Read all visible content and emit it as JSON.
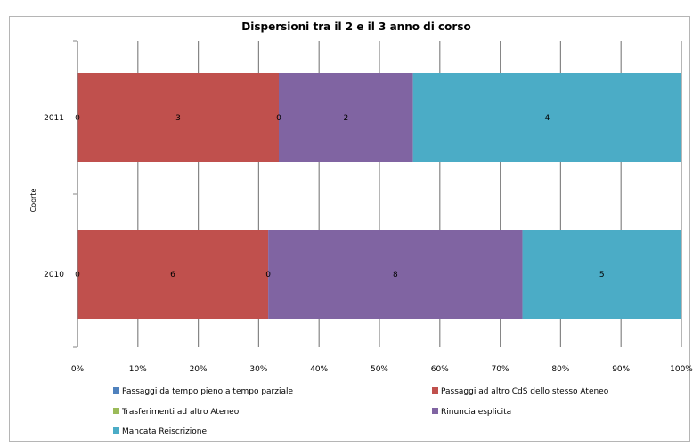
{
  "chart_data": {
    "type": "bar",
    "orientation": "horizontal",
    "stacking": "percent",
    "title": "Dispersioni tra il 2  e il 3  anno di corso",
    "ylabel": "Coorte",
    "xlabel": "",
    "categories": [
      "2011",
      "2010"
    ],
    "xlim": [
      0,
      100
    ],
    "x_ticks": [
      "0%",
      "10%",
      "20%",
      "30%",
      "40%",
      "50%",
      "60%",
      "70%",
      "80%",
      "90%",
      "100%"
    ],
    "grid": "vertical",
    "legend_position": "bottom",
    "series": [
      {
        "name": "Passaggi da tempo pieno a tempo parziale",
        "color": "#4f81bd",
        "values": [
          0,
          0
        ]
      },
      {
        "name": "Passaggi ad altro CdS dello stesso Ateneo",
        "color": "#c0504d",
        "values": [
          3,
          6
        ]
      },
      {
        "name": "Trasferimenti ad altro Ateneo",
        "color": "#9bbb59",
        "values": [
          0,
          0
        ]
      },
      {
        "name": "Rinuncia esplicita",
        "color": "#8064a2",
        "values": [
          2,
          8
        ]
      },
      {
        "name": "Mancata Reiscrizione",
        "color": "#4bacc6",
        "values": [
          4,
          5
        ]
      }
    ]
  }
}
